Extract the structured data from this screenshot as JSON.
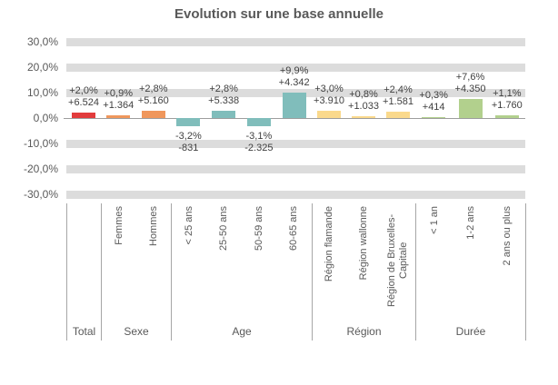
{
  "chart_data": {
    "type": "bar",
    "title": "Evolution sur une base annuelle",
    "y_axis": {
      "range": [
        -30,
        30
      ],
      "tick_step": 10,
      "unit": "%",
      "ticks": [
        {
          "value": 30,
          "label": "30,0%"
        },
        {
          "value": 20,
          "label": "20,0%"
        },
        {
          "value": 10,
          "label": "10,0%"
        },
        {
          "value": 0,
          "label": "0,0%"
        },
        {
          "value": -10,
          "label": "-10,0%"
        },
        {
          "value": -20,
          "label": "-20,0%"
        },
        {
          "value": -30,
          "label": "-30,0%"
        }
      ]
    },
    "colors": {
      "total": "#e23b3c",
      "sexe": "#f0975c",
      "age": "#80bdbb",
      "region": "#fad98c",
      "duree": "#b2d08d",
      "gridband": "#dcdcdc",
      "zero_line": "#9d9d9d",
      "axis_text": "#595959",
      "value_text": "#3f3f3f"
    },
    "groups": [
      {
        "label": "Total",
        "color": "#e23b3c",
        "items": [
          {
            "category": "",
            "pct": 2.0,
            "pct_label": "+2,0%",
            "count_label": "+6.524"
          }
        ]
      },
      {
        "label": "Sexe",
        "color": "#f0975c",
        "items": [
          {
            "category": "Femmes",
            "pct": 0.9,
            "pct_label": "+0,9%",
            "count_label": "+1.364"
          },
          {
            "category": "Hommes",
            "pct": 2.8,
            "pct_label": "+2,8%",
            "count_label": "+5.160"
          }
        ]
      },
      {
        "label": "Age",
        "color": "#80bdbb",
        "items": [
          {
            "category": "< 25 ans",
            "pct": -3.2,
            "pct_label": "-3,2%",
            "count_label": "-831"
          },
          {
            "category": "25-50 ans",
            "pct": 2.8,
            "pct_label": "+2,8%",
            "count_label": "+5.338"
          },
          {
            "category": "50-59 ans",
            "pct": -3.1,
            "pct_label": "-3,1%",
            "count_label": "-2.325"
          },
          {
            "category": "60-65 ans",
            "pct": 9.9,
            "pct_label": "+9,9%",
            "count_label": "+4.342"
          }
        ]
      },
      {
        "label": "Région",
        "color": "#fad98c",
        "items": [
          {
            "category": "Région flamande",
            "pct": 3.0,
            "pct_label": "+3,0%",
            "count_label": "+3.910"
          },
          {
            "category": "Région wallonne",
            "pct": 0.8,
            "pct_label": "+0,8%",
            "count_label": "+1.033"
          },
          {
            "category": "Région de Bruxelles-Capitale",
            "pct": 2.4,
            "pct_label": "+2,4%",
            "count_label": "+1.581"
          }
        ]
      },
      {
        "label": "Durée",
        "color": "#b2d08d",
        "items": [
          {
            "category": "< 1 an",
            "pct": 0.3,
            "pct_label": "+0,3%",
            "count_label": "+414"
          },
          {
            "category": "1-2 ans",
            "pct": 7.6,
            "pct_label": "+7,6%",
            "count_label": "+4.350"
          },
          {
            "category": "2 ans ou plus",
            "pct": 1.1,
            "pct_label": "+1,1%",
            "count_label": "+1.760"
          }
        ]
      }
    ]
  }
}
